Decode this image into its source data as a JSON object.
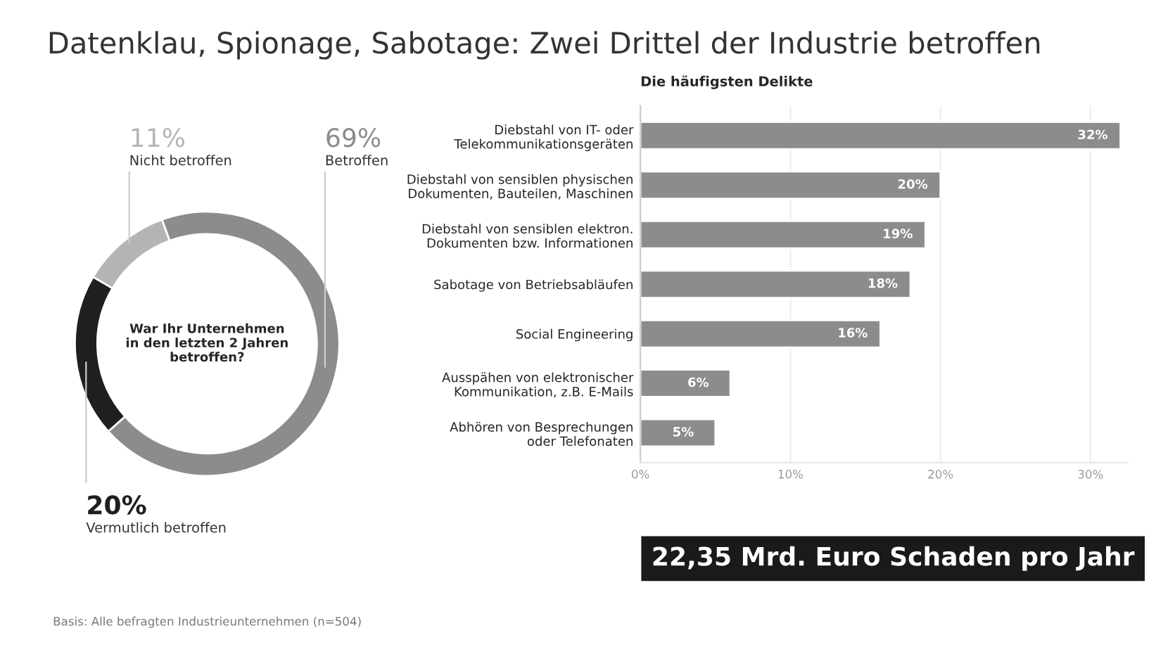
{
  "chart_data": [
    {
      "type": "donut",
      "title": "Datenklau, Spionage, Sabotage: Zwei Drittel der Industrie betroffen",
      "categories": [
        "Betroffen",
        "Vermutlich betroffen",
        "Nicht betroffen"
      ],
      "values": [
        69,
        20,
        11
      ],
      "colors": [
        "#8c8c8c",
        "#1f1f1f",
        "#b4b4b4"
      ],
      "value_labels": [
        "69%",
        "20%",
        "11%"
      ],
      "annotations": [
        "War Ihr Unternehmen\nin den letzten 2 Jahren\nbetroffen?",
        "Basis: Alle befragten Industrieunternehmen (n=504)"
      ]
    },
    {
      "type": "bar",
      "orientation": "horizontal",
      "title": "Die häufigsten Delikte",
      "categories": [
        "Diebstahl von IT- oder\nTelekommunikationsgeräten",
        "Diebstahl von sensiblen physischen\nDokumenten, Bauteilen, Maschinen",
        "Diebstahl von sensiblen elektron.\nDokumenten bzw. Informationen",
        "Sabotage von Betriebsabläufen",
        "Social Engineering",
        "Ausspähen von elektronischer\nKommunikation, z.B. E-Mails",
        "Abhören von Besprechungen\noder Telefonaten"
      ],
      "values": [
        32,
        20,
        19,
        18,
        16,
        6,
        5
      ],
      "value_labels": [
        "32%",
        "20%",
        "19%",
        "18%",
        "16%",
        "6%",
        "5%"
      ],
      "color": "#8c8c8c",
      "xlim": [
        0,
        32.5
      ],
      "xticks": [
        {
          "value": 0,
          "label": "0%"
        },
        {
          "value": 10,
          "label": "10%"
        },
        {
          "value": 20,
          "label": "20%"
        },
        {
          "value": 30,
          "label": "30%"
        }
      ],
      "grid": "x",
      "annotations": [
        "22,35 Mrd. Euro Schaden pro Jahr"
      ]
    }
  ]
}
